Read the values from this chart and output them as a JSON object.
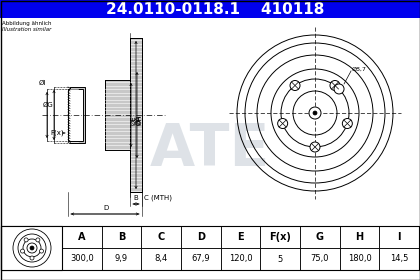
{
  "title_part1": "24.0110-0118.1",
  "title_part2": "410118",
  "header_bg": "#0000EE",
  "header_text_color": "#FFFFFF",
  "note_line1": "Abbildung ähnlich",
  "note_line2": "Illustration similar",
  "dim_label_8_7": "Ø8,7",
  "table_headers": [
    "A",
    "B",
    "C",
    "D",
    "E",
    "F(x)",
    "G",
    "H",
    "I"
  ],
  "table_values": [
    "300,0",
    "9,9",
    "8,4",
    "67,9",
    "120,0",
    "5",
    "75,0",
    "180,0",
    "14,5"
  ],
  "bg_light": "#D8E0E8",
  "watermark_color": "#C0C8D0"
}
